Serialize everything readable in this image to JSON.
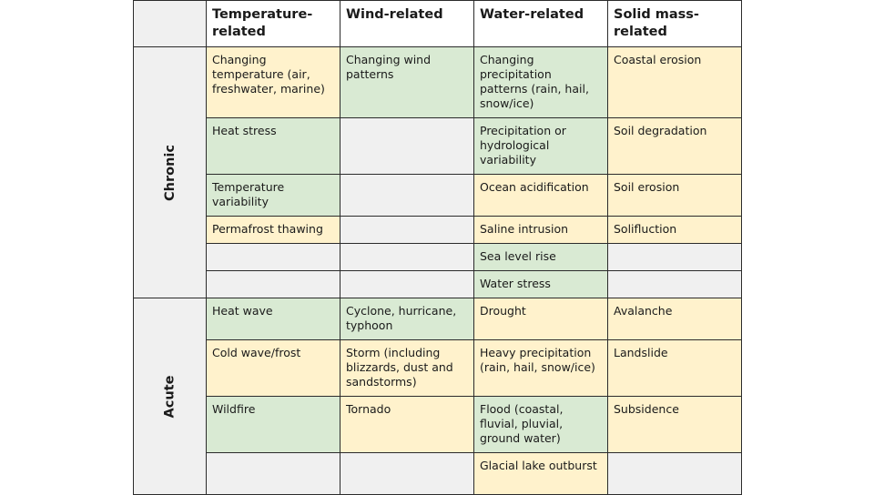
{
  "headers": {
    "temperature": "Temperature-related",
    "wind": "Wind-related",
    "water": "Water-related",
    "solid": "Solid mass-related"
  },
  "groups": {
    "chronic": "Chronic",
    "acute": "Acute"
  },
  "colors": {
    "yellow": "#fff2cc",
    "green": "#d9ead3",
    "empty": "#f0f0f0"
  },
  "chronic_rows": [
    {
      "temperature": "Changing temperature (air, freshwater, marine)",
      "wind": "Changing wind patterns",
      "water": "Changing precipitation patterns (rain, hail, snow/ice)",
      "solid": "Coastal erosion"
    },
    {
      "temperature": "Heat stress",
      "wind": "",
      "water": "Precipitation or hydrological variability",
      "solid": "Soil degradation"
    },
    {
      "temperature": "Temperature variability",
      "wind": "",
      "water": "Ocean acidification",
      "solid": "Soil erosion"
    },
    {
      "temperature": "Permafrost thawing",
      "wind": "",
      "water": "Saline intrusion",
      "solid": "Solifluction"
    },
    {
      "temperature": "",
      "wind": "",
      "water": "Sea level rise",
      "solid": ""
    },
    {
      "temperature": "",
      "wind": "",
      "water": "Water stress",
      "solid": ""
    }
  ],
  "acute_rows": [
    {
      "temperature": "Heat wave",
      "wind": "Cyclone, hurricane, typhoon",
      "water": "Drought",
      "solid": "Avalanche"
    },
    {
      "temperature": "Cold wave/frost",
      "wind": "Storm (including blizzards, dust and sandstorms)",
      "water": "Heavy precipitation (rain, hail, snow/ice)",
      "solid": "Landslide"
    },
    {
      "temperature": "Wildfire",
      "wind": "Tornado",
      "water": "Flood (coastal, fluvial, pluvial, ground water)",
      "solid": "Subsidence"
    },
    {
      "temperature": "",
      "wind": "",
      "water": "Glacial lake outburst",
      "solid": ""
    }
  ]
}
